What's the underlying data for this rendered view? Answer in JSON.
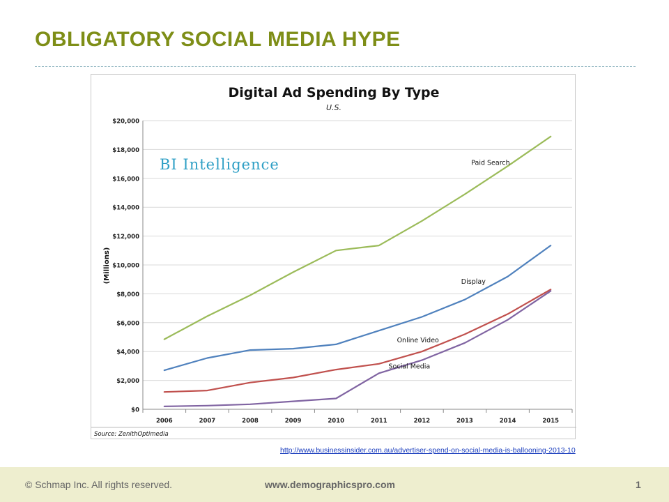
{
  "slide": {
    "title": "OBLIGATORY SOCIAL MEDIA HYPE",
    "source_url": "http://www.businessinsider.com.au/advertiser-spend-on-social-media-is-ballooning-2013-10"
  },
  "footer": {
    "copyright": "© Schmap Inc. All rights reserved.",
    "website": "www.demographicspro.com",
    "page_number": "1"
  },
  "colors": {
    "title": "#7e8e17",
    "paid_search": "#9bbb59",
    "display": "#4f81bd",
    "online_video": "#c0504d",
    "social_media": "#8064a2",
    "brand": "#2e9fc5"
  },
  "chart_data": {
    "type": "line",
    "title": "Digital Ad Spending By Type",
    "subtitle": "U.S.",
    "brand": "BI Intelligence",
    "ylabel": "(Millions)",
    "xlabel": "",
    "source": "Source: ZenithOptimedia",
    "x": [
      "2006",
      "2007",
      "2008",
      "2009",
      "2010",
      "2011",
      "2012",
      "2013",
      "2014",
      "2015"
    ],
    "ylim": [
      0,
      20000
    ],
    "yticks": [
      "$0",
      "$2,000",
      "$4,000",
      "$6,000",
      "$8,000",
      "$10,000",
      "$12,000",
      "$14,000",
      "$16,000",
      "$18,000",
      "$20,000"
    ],
    "grid": true,
    "series": [
      {
        "name": "Paid Search",
        "color": "#9bbb59",
        "values": [
          4850,
          6450,
          7900,
          9500,
          11000,
          11350,
          13050,
          14900,
          16850,
          18900
        ]
      },
      {
        "name": "Display",
        "color": "#4f81bd",
        "values": [
          2700,
          3550,
          4100,
          4200,
          4500,
          5450,
          6400,
          7600,
          9200,
          11350
        ]
      },
      {
        "name": "Online Video",
        "color": "#c0504d",
        "values": [
          1200,
          1300,
          1850,
          2200,
          2750,
          3150,
          4000,
          5200,
          6600,
          8300
        ]
      },
      {
        "name": "Social Media",
        "color": "#8064a2",
        "values": [
          200,
          250,
          350,
          550,
          750,
          2500,
          3400,
          4600,
          6200,
          8200
        ]
      }
    ]
  }
}
